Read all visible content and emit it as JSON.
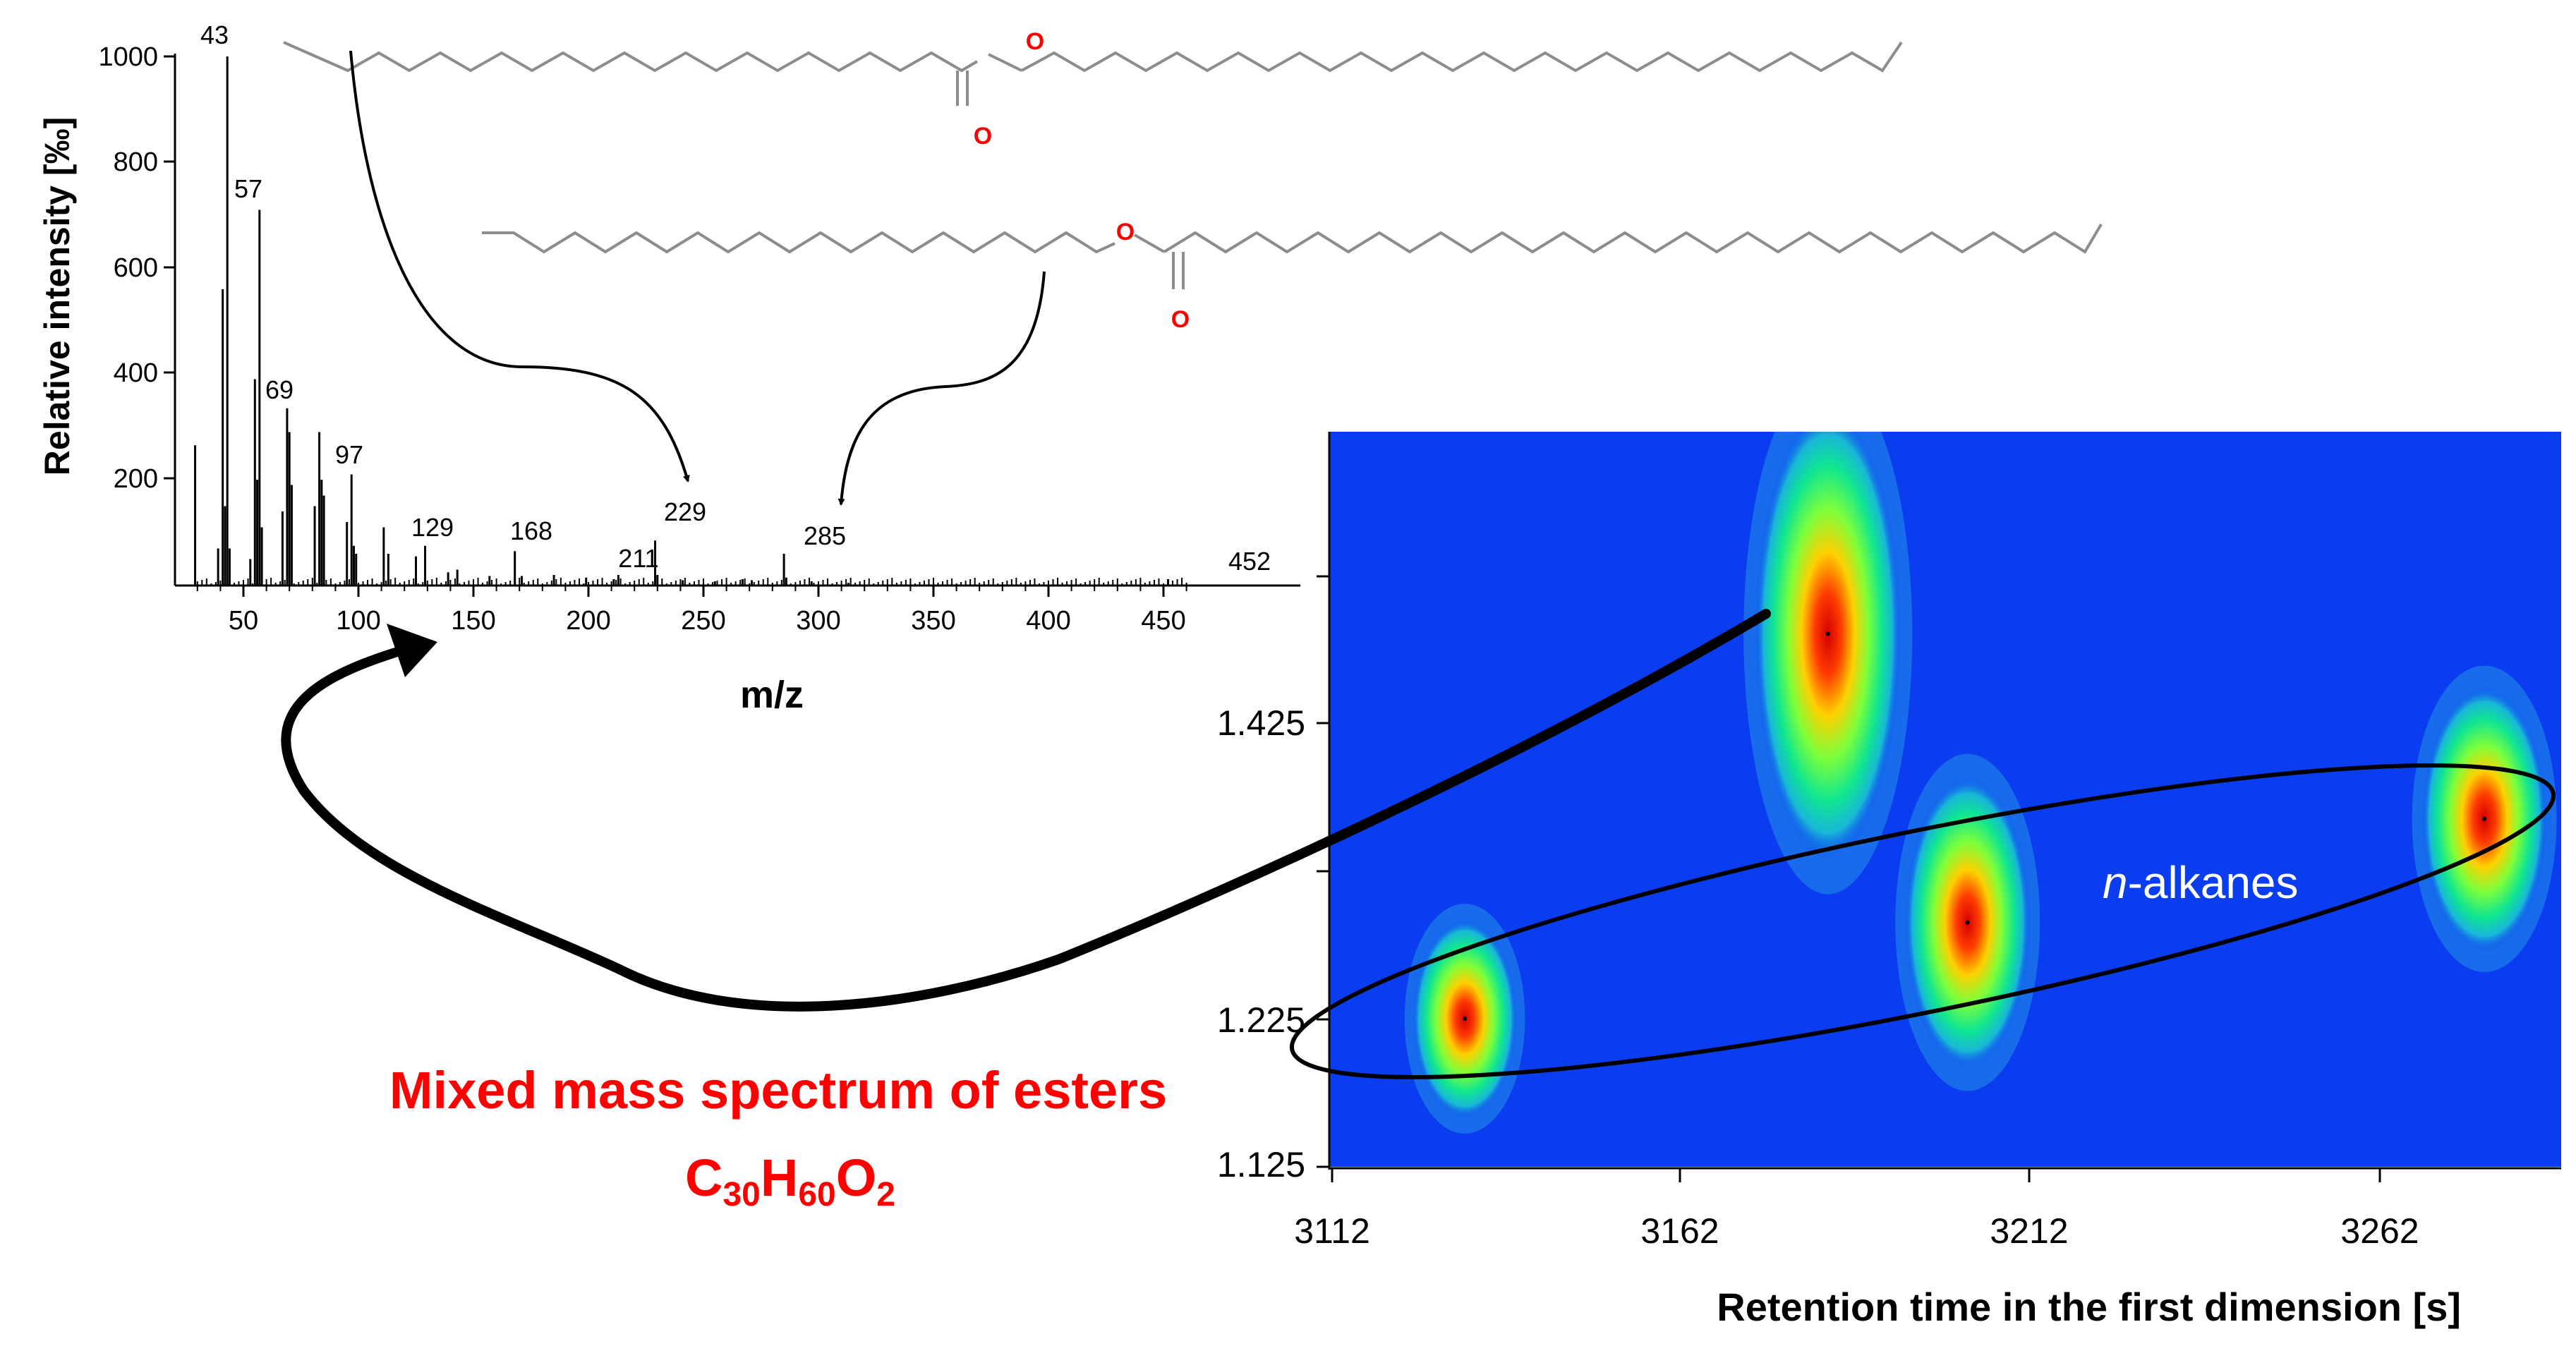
{
  "mass_spectrum": {
    "ylabel": "Relative intensity [‰]",
    "xlabel": "m/z",
    "yticks": [
      "1000",
      "800",
      "600",
      "400",
      "200"
    ],
    "xticks": [
      "50",
      "100",
      "150",
      "200",
      "250",
      "300",
      "350",
      "400",
      "450"
    ],
    "peak_labels": [
      "43",
      "57",
      "69",
      "97",
      "129",
      "168",
      "211",
      "229",
      "285",
      "452"
    ]
  },
  "structures": {
    "ester1_O_ether": "O",
    "ester1_O_carbonyl": "O",
    "ester2_O_ether": "O",
    "ester2_O_carbonyl": "O"
  },
  "contour_plot": {
    "yticks": [
      "1.425",
      "1.225",
      "1.125"
    ],
    "xticks": [
      "3112",
      "3162",
      "3212",
      "3262"
    ],
    "xlabel": "Retention time in the first dimension [s]",
    "annotation_italic": "n",
    "annotation_rest": "-alkanes"
  },
  "caption": {
    "line1": "Mixed mass spectrum of esters",
    "formula_C": "C",
    "formula_C_sub": "30",
    "formula_H": "H",
    "formula_H_sub": "60",
    "formula_O": "O",
    "formula_O_sub": "2"
  },
  "colors": {
    "contour_background": "#0a3cf0",
    "oxygen": "#ff0000",
    "bond": "#8c8c8c",
    "caption": "#ff0000",
    "annotation": "#ffffff"
  },
  "chart_data": [
    {
      "type": "bar",
      "subtype": "mass_spectrum",
      "xlabel": "m/z",
      "ylabel": "Relative intensity [‰]",
      "xlim": [
        28,
        462
      ],
      "ylim": [
        0,
        1000
      ],
      "x": [
        29,
        39,
        41,
        42,
        43,
        44,
        53,
        55,
        56,
        57,
        58,
        67,
        69,
        70,
        71,
        81,
        83,
        84,
        85,
        95,
        97,
        98,
        99,
        111,
        113,
        125,
        129,
        139,
        143,
        157,
        168,
        171,
        185,
        199,
        211,
        213,
        229,
        230,
        241,
        255,
        267,
        271,
        285,
        286,
        297,
        313,
        452
      ],
      "values": [
        265,
        70,
        560,
        150,
        1000,
        70,
        50,
        390,
        200,
        710,
        110,
        140,
        335,
        290,
        190,
        150,
        290,
        200,
        170,
        120,
        210,
        75,
        60,
        110,
        60,
        55,
        75,
        25,
        30,
        18,
        65,
        18,
        20,
        15,
        12,
        20,
        85,
        20,
        10,
        8,
        12,
        10,
        60,
        15,
        8,
        5,
        12
      ],
      "labeled_peaks": [
        43,
        57,
        69,
        97,
        129,
        168,
        211,
        229,
        285,
        452
      ]
    },
    {
      "type": "heatmap",
      "subtype": "GCxGC_contour",
      "xlabel": "Retention time in the first dimension [s]",
      "ylabel": "",
      "xlim": [
        3112,
        3288
      ],
      "ylim": [
        1.125,
        1.575
      ],
      "xticks": [
        3112,
        3162,
        3212,
        3262
      ],
      "yticks": [
        1.125,
        1.225,
        1.425
      ],
      "peaks": [
        {
          "x": 3131,
          "y": 1.225,
          "width": 5,
          "height": 0.075,
          "group": "n-alkanes"
        },
        {
          "x": 3183,
          "y": 1.485,
          "width": 7,
          "height": 0.17,
          "group": "esters C30H60O2"
        },
        {
          "x": 3203,
          "y": 1.29,
          "width": 6,
          "height": 0.11,
          "group": "n-alkanes"
        },
        {
          "x": 3277,
          "y": 1.36,
          "width": 6,
          "height": 0.1,
          "group": "n-alkanes"
        }
      ],
      "annotation": "n-alkanes"
    }
  ]
}
